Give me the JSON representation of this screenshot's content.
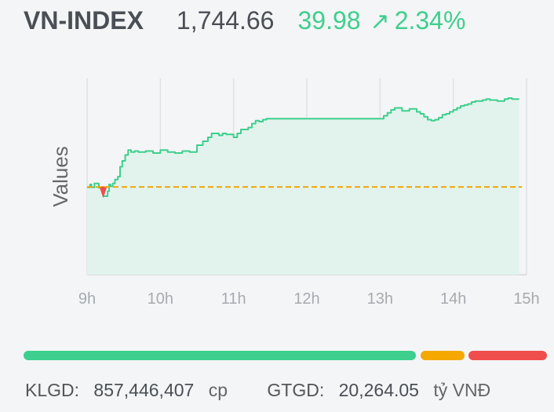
{
  "index": {
    "name": "VN-INDEX",
    "value": "1,744.66",
    "change": "39.98",
    "arrow_icon": "arrow-up-right-icon",
    "change_percent": "2.34%",
    "color_up": "#3ecf8e"
  },
  "chart_data": {
    "type": "area",
    "ylabel": "Values",
    "x_ticks": [
      "9h",
      "10h",
      "11h",
      "12h",
      "13h",
      "14h",
      "15h"
    ],
    "reference_value": 1704.68,
    "ylim": [
      1660,
      1760
    ],
    "grid": "vertical",
    "line_color": "#3ecf8e",
    "fill_color": "#e2f3ed",
    "reference_line_color": "#f0a500",
    "below_reference_color": "#f04d4d",
    "x": [
      9.0,
      9.04,
      9.06,
      9.1,
      9.16,
      9.2,
      9.22,
      9.28,
      9.3,
      9.32,
      9.35,
      9.38,
      9.42,
      9.45,
      9.48,
      9.52,
      9.56,
      9.6,
      9.65,
      9.7,
      9.8,
      9.9,
      10.0,
      10.1,
      10.2,
      10.3,
      10.4,
      10.5,
      10.58,
      10.65,
      10.7,
      10.8,
      10.85,
      10.9,
      11.0,
      11.05,
      11.1,
      11.2,
      11.25,
      11.3,
      11.35,
      11.4,
      11.45,
      11.5,
      11.6,
      12.0,
      12.5,
      13.0,
      13.05,
      13.1,
      13.15,
      13.2,
      13.3,
      13.4,
      13.5,
      13.55,
      13.6,
      13.65,
      13.7,
      13.75,
      13.8,
      13.85,
      13.9,
      13.95,
      14.0,
      14.05,
      14.1,
      14.15,
      14.2,
      14.25,
      14.3,
      14.4,
      14.45,
      14.5,
      14.6,
      14.7,
      14.75,
      14.8,
      14.85,
      14.9
    ],
    "y": [
      1704.5,
      1706.0,
      1704.5,
      1706.5,
      1704.3,
      1704.5,
      1700.0,
      1702.5,
      1706.0,
      1705.0,
      1706.5,
      1708.5,
      1710.0,
      1715.0,
      1718.0,
      1721.0,
      1723.5,
      1722.5,
      1723.0,
      1722.5,
      1723.0,
      1722.0,
      1723.5,
      1722.5,
      1722.0,
      1723.0,
      1722.5,
      1726.0,
      1728.0,
      1730.0,
      1732.0,
      1731.0,
      1732.0,
      1731.5,
      1730.0,
      1732.0,
      1734.0,
      1735.0,
      1737.0,
      1738.5,
      1738.0,
      1739.0,
      1739.5,
      1739.5,
      1739.5,
      1739.5,
      1739.5,
      1739.5,
      1741.0,
      1742.5,
      1744.0,
      1745.0,
      1743.5,
      1744.5,
      1743.0,
      1742.0,
      1740.5,
      1739.0,
      1738.5,
      1739.0,
      1740.0,
      1741.5,
      1742.0,
      1743.0,
      1744.0,
      1745.0,
      1746.0,
      1746.5,
      1747.0,
      1748.0,
      1748.5,
      1749.0,
      1749.5,
      1749.0,
      1748.5,
      1749.5,
      1750.0,
      1749.5,
      1749.5,
      1749.5
    ]
  },
  "breadth": {
    "up_fraction": 0.757,
    "unchanged_fraction": 0.089,
    "down_fraction": 0.154,
    "up_color": "#3ecf8e",
    "unchanged_color": "#f5a800",
    "down_color": "#f04d4d"
  },
  "footer": {
    "volume_label": "KLGD:",
    "volume_value": "857,446,407",
    "volume_unit": "cp",
    "value_label": "GTGD:",
    "value_value": "20,264.05",
    "value_unit": "tỷ VNĐ"
  }
}
